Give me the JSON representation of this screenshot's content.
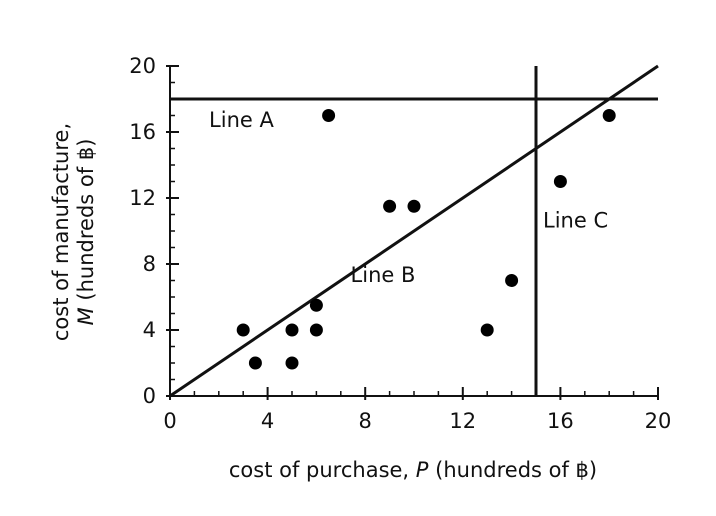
{
  "chart_data": {
    "type": "scatter",
    "title": "",
    "xlabel": "cost of purchase, P (hundreds of ฿)",
    "xlabel_parts": {
      "before": "cost of purchase, ",
      "italic": "P",
      "after": " (hundreds of ฿)"
    },
    "ylabel_line1": "cost of manufacture,",
    "ylabel_line2_parts": {
      "italic": "M",
      "after": " (hundreds of ฿)"
    },
    "xlim": [
      0,
      20
    ],
    "ylim": [
      0,
      20
    ],
    "x_major_ticks": [
      0,
      4,
      8,
      12,
      16,
      20
    ],
    "y_major_ticks": [
      0,
      4,
      8,
      12,
      16,
      20
    ],
    "minor_tick_step": 1,
    "grid": false,
    "points": [
      {
        "x": 3,
        "y": 4
      },
      {
        "x": 3.5,
        "y": 2
      },
      {
        "x": 5,
        "y": 4
      },
      {
        "x": 5,
        "y": 2
      },
      {
        "x": 6,
        "y": 5.5
      },
      {
        "x": 6,
        "y": 4
      },
      {
        "x": 6.5,
        "y": 17
      },
      {
        "x": 9,
        "y": 11.5
      },
      {
        "x": 10,
        "y": 11.5
      },
      {
        "x": 13,
        "y": 4
      },
      {
        "x": 14,
        "y": 7
      },
      {
        "x": 16,
        "y": 13
      },
      {
        "x": 18,
        "y": 17
      }
    ],
    "lines": [
      {
        "label": "Line A",
        "kind": "horizontal",
        "y": 18
      },
      {
        "label": "Line B",
        "kind": "through",
        "from": [
          0,
          0
        ],
        "to": [
          20,
          20
        ]
      },
      {
        "label": "Line C",
        "kind": "vertical",
        "x": 15
      }
    ]
  }
}
